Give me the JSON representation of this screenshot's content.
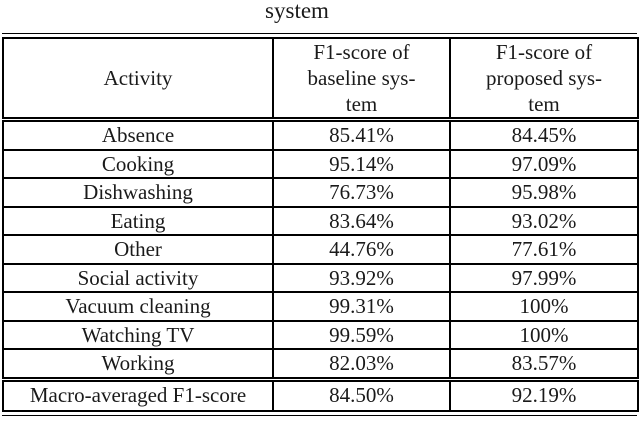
{
  "caption": "system",
  "table": {
    "header": {
      "activity": "Activity",
      "baseline": "F1-score of\nbaseline sys-\ntem",
      "proposed": "F1-score of\nproposed sys-\ntem"
    },
    "rows": [
      {
        "activity": "Absence",
        "baseline": "85.41%",
        "proposed": "84.45%"
      },
      {
        "activity": "Cooking",
        "baseline": "95.14%",
        "proposed": "97.09%"
      },
      {
        "activity": "Dishwashing",
        "baseline": "76.73%",
        "proposed": "95.98%"
      },
      {
        "activity": "Eating",
        "baseline": "83.64%",
        "proposed": "93.02%"
      },
      {
        "activity": "Other",
        "baseline": "44.76%",
        "proposed": "77.61%"
      },
      {
        "activity": "Social activity",
        "baseline": "93.92%",
        "proposed": "97.99%"
      },
      {
        "activity": "Vacuum cleaning",
        "baseline": "99.31%",
        "proposed": "100%"
      },
      {
        "activity": "Watching TV",
        "baseline": "99.59%",
        "proposed": "100%"
      },
      {
        "activity": "Working",
        "baseline": "82.03%",
        "proposed": "83.57%"
      }
    ],
    "footer": {
      "activity": "Macro-averaged F1-score",
      "baseline": "84.50%",
      "proposed": "92.19%"
    }
  },
  "colors": {
    "text": "#1a1a1a",
    "border": "#000000",
    "background": "#ffffff"
  }
}
